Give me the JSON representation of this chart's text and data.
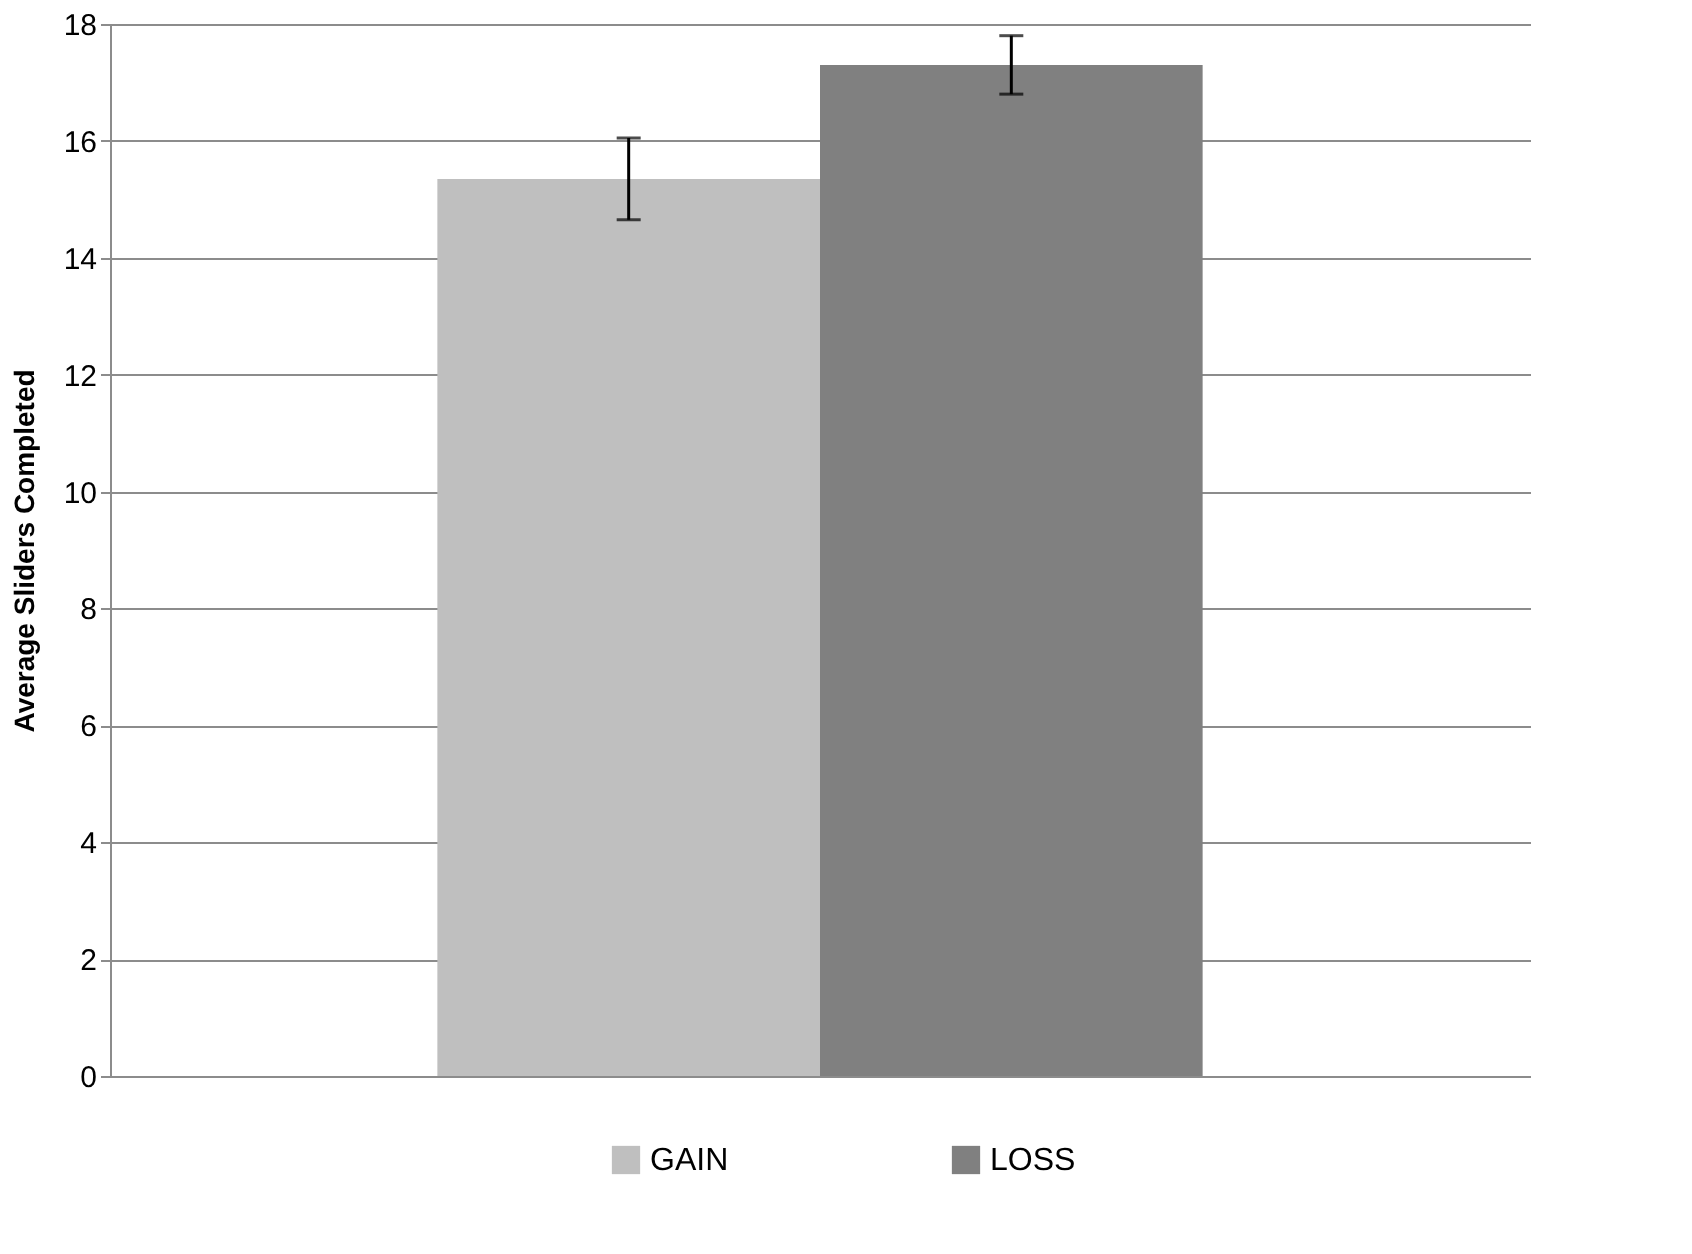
{
  "chart_data": {
    "type": "bar",
    "ylabel": "Average Sliders Completed",
    "categories": [
      null
    ],
    "series": [
      {
        "name": "GAIN",
        "color": "#bfbfbf",
        "values": [
          15.35
        ],
        "errors": [
          0.7
        ]
      },
      {
        "name": "LOSS",
        "color": "#808080",
        "values": [
          17.3
        ],
        "errors": [
          0.5
        ]
      }
    ],
    "ylim": [
      0,
      18
    ],
    "yticks": [
      0,
      2,
      4,
      6,
      8,
      10,
      12,
      14,
      16,
      18
    ],
    "grid": "y",
    "legend": "bottom"
  }
}
